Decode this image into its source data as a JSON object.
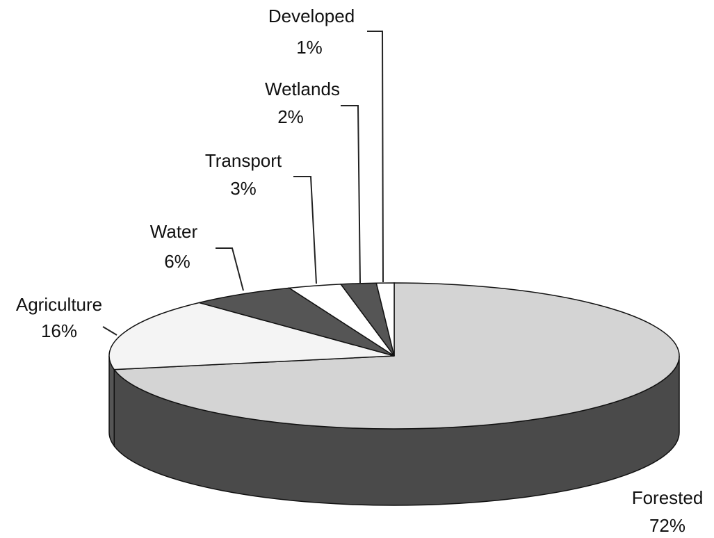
{
  "chart_data": {
    "type": "pie",
    "categories": [
      "Forested",
      "Agriculture",
      "Water",
      "Transport",
      "Wetlands",
      "Developed"
    ],
    "values": [
      72,
      16,
      6,
      3,
      2,
      1
    ],
    "value_labels": [
      "72%",
      "16%",
      "6%",
      "3%",
      "2%",
      "1%"
    ],
    "colors": [
      "#d4d4d4",
      "#f4f4f4",
      "#555555",
      "#ffffff",
      "#555555",
      "#ffffff"
    ]
  }
}
